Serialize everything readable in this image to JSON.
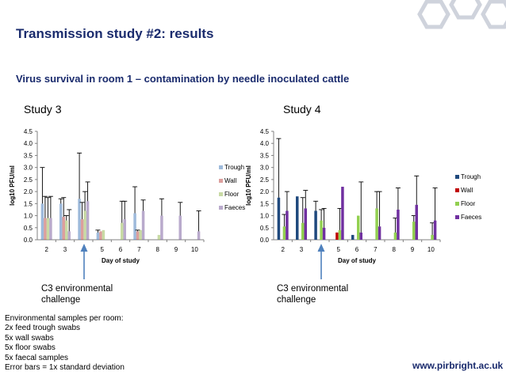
{
  "slide": {
    "title": "Transmission study #2: results",
    "subtitle": "Virus survival in room 1 – contamination by needle inoculated cattle",
    "study3_label": "Study 3",
    "study4_label": "Study 4",
    "note3": [
      "C3 environmental",
      "challenge"
    ],
    "note4": [
      "C3 environmental",
      "challenge"
    ],
    "footer_notes": [
      "Environmental samples per room:",
      "2x feed trough swabs",
      "5x wall swabs",
      "5x floor swabs",
      "5x faecal samples",
      "Error bars = 1x standard deviation"
    ],
    "url": "www.pirbright.ac.uk",
    "colors": {
      "title": "#1a2b6d",
      "arrow": "#4f81bd"
    }
  },
  "chart_data": [
    {
      "type": "bar",
      "title": "Study 3",
      "xlabel": "Day of study",
      "ylabel": "log10 PFU/ml",
      "ylim": [
        0,
        4.5
      ],
      "yticks": [
        "0.0",
        "0.5",
        "1.0",
        "1.5",
        "2.0",
        "2.5",
        "3.0",
        "3.5",
        "4.0",
        "4.5"
      ],
      "categories": [
        "2",
        "3",
        "4",
        "5",
        "6",
        "7",
        "8",
        "9",
        "10"
      ],
      "style": "faded",
      "series": [
        {
          "name": "Trough",
          "color": "#4f81bd",
          "values": [
            1.5,
            1.5,
            1.7,
            0.3,
            0,
            1.1,
            0,
            0,
            0
          ],
          "errors": [
            1.5,
            0.2,
            1.9,
            0.1,
            0,
            1.1,
            0,
            0,
            0
          ]
        },
        {
          "name": "Wall",
          "color": "#c0504d",
          "values": [
            0.9,
            0.95,
            0.85,
            0.35,
            0,
            0.35,
            0,
            0,
            0
          ],
          "errors": [
            0.9,
            0.8,
            0.7,
            0,
            0,
            0.05,
            0,
            0,
            0
          ]
        },
        {
          "name": "Floor",
          "color": "#9bbb59",
          "values": [
            0.9,
            0.8,
            1.2,
            0.4,
            0.7,
            0.4,
            0.2,
            0,
            0
          ],
          "errors": [
            0.85,
            0.2,
            0.8,
            0,
            0.9,
            0,
            0,
            0,
            0
          ]
        },
        {
          "name": "Faeces",
          "color": "#8064a2",
          "values": [
            0.9,
            0.35,
            1.6,
            0,
            0.85,
            1.2,
            1.0,
            1.0,
            0.35
          ],
          "errors": [
            0.9,
            0.9,
            0.8,
            0,
            0.75,
            0.45,
            0.7,
            0.55,
            0.85
          ]
        }
      ]
    },
    {
      "type": "bar",
      "title": "Study 4",
      "xlabel": "Day of study",
      "ylabel": "log10 PFU/ml",
      "ylim": [
        0,
        4.5
      ],
      "yticks": [
        "0.0",
        "0.5",
        "1.0",
        "1.5",
        "2.0",
        "2.5",
        "3.0",
        "3.5",
        "4.0",
        "4.5"
      ],
      "categories": [
        "2",
        "3",
        "4",
        "5",
        "6",
        "7",
        "8",
        "9",
        "10"
      ],
      "style": "solid",
      "series": [
        {
          "name": "Trough",
          "color": "#1f497d",
          "values": [
            1.75,
            1.8,
            1.2,
            0,
            0.2,
            0,
            0,
            0,
            0
          ],
          "errors": [
            2.45,
            0,
            0.4,
            0,
            0,
            0,
            0,
            0,
            0
          ]
        },
        {
          "name": "Wall",
          "color": "#c00000",
          "values": [
            0,
            0,
            0,
            0.3,
            0,
            0,
            0,
            0,
            0
          ],
          "errors": [
            0,
            0,
            0,
            0,
            0,
            0,
            0,
            0,
            0
          ]
        },
        {
          "name": "Floor",
          "color": "#92d050",
          "values": [
            0.55,
            0.7,
            0.8,
            0.4,
            1.0,
            1.3,
            0.3,
            0.75,
            0.2
          ],
          "errors": [
            0.5,
            1.05,
            0.45,
            0.9,
            0,
            0.7,
            0.6,
            0.25,
            0.5
          ]
        },
        {
          "name": "Faeces",
          "color": "#7030a0",
          "values": [
            1.2,
            1.3,
            0.5,
            2.2,
            0.3,
            0.55,
            1.25,
            1.45,
            0.8
          ],
          "errors": [
            0.8,
            0.75,
            0.8,
            0,
            2.1,
            1.45,
            0.9,
            1.2,
            1.35
          ]
        }
      ]
    }
  ]
}
